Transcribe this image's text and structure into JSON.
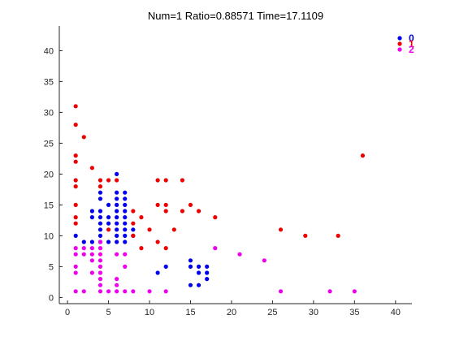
{
  "chart_data": {
    "type": "scatter",
    "title": "Num=1 Ratio=0.88571 Time=17.1109",
    "xlabel": "",
    "ylabel": "",
    "xlim": [
      -1,
      42
    ],
    "ylim": [
      -1,
      44
    ],
    "xticks": [
      "0",
      "5",
      "10",
      "15",
      "20",
      "25",
      "30",
      "35",
      "40"
    ],
    "yticks": [
      "0",
      "5",
      "10",
      "15",
      "20",
      "25",
      "30",
      "35",
      "40"
    ],
    "grid": false,
    "legend_position": "top-right",
    "series": [
      {
        "name": "0",
        "color": "#0000ee",
        "points": [
          [
            6,
            20
          ],
          [
            4,
            17
          ],
          [
            6,
            17
          ],
          [
            7,
            17
          ],
          [
            4,
            16
          ],
          [
            6,
            16
          ],
          [
            7,
            16
          ],
          [
            5,
            15
          ],
          [
            6,
            15
          ],
          [
            7,
            15
          ],
          [
            3,
            14
          ],
          [
            4,
            14
          ],
          [
            6,
            14
          ],
          [
            7,
            14
          ],
          [
            3,
            13
          ],
          [
            4,
            13
          ],
          [
            5,
            13
          ],
          [
            6,
            13
          ],
          [
            7,
            13
          ],
          [
            4,
            12
          ],
          [
            5,
            12
          ],
          [
            6,
            12
          ],
          [
            7,
            12
          ],
          [
            4,
            11
          ],
          [
            6,
            11
          ],
          [
            7,
            11
          ],
          [
            8,
            11
          ],
          [
            1,
            10
          ],
          [
            4,
            10
          ],
          [
            6,
            10
          ],
          [
            7,
            10
          ],
          [
            8,
            10
          ],
          [
            2,
            9
          ],
          [
            3,
            9
          ],
          [
            4,
            9
          ],
          [
            5,
            9
          ],
          [
            6,
            9
          ],
          [
            7,
            9
          ],
          [
            15,
            6
          ],
          [
            12,
            5
          ],
          [
            15,
            5
          ],
          [
            16,
            5
          ],
          [
            17,
            5
          ],
          [
            11,
            4
          ],
          [
            16,
            4
          ],
          [
            17,
            4
          ],
          [
            17,
            3
          ],
          [
            15,
            2
          ],
          [
            16,
            2
          ]
        ]
      },
      {
        "name": "1",
        "color": "#ee0000",
        "points": [
          [
            1,
            31
          ],
          [
            1,
            28
          ],
          [
            2,
            26
          ],
          [
            1,
            23
          ],
          [
            1,
            22
          ],
          [
            3,
            21
          ],
          [
            1,
            19
          ],
          [
            4,
            19
          ],
          [
            5,
            19
          ],
          [
            6,
            19
          ],
          [
            11,
            19
          ],
          [
            12,
            19
          ],
          [
            14,
            19
          ],
          [
            1,
            18
          ],
          [
            4,
            18
          ],
          [
            11,
            15
          ],
          [
            12,
            15
          ],
          [
            15,
            15
          ],
          [
            1,
            15
          ],
          [
            16,
            14
          ],
          [
            8,
            14
          ],
          [
            12,
            14
          ],
          [
            14,
            14
          ],
          [
            1,
            13
          ],
          [
            9,
            13
          ],
          [
            18,
            13
          ],
          [
            8,
            12
          ],
          [
            1,
            12
          ],
          [
            5,
            11
          ],
          [
            13,
            11
          ],
          [
            10,
            11
          ],
          [
            26,
            11
          ],
          [
            33,
            10
          ],
          [
            29,
            10
          ],
          [
            8,
            10
          ],
          [
            11,
            9
          ],
          [
            12,
            8
          ],
          [
            9,
            8
          ],
          [
            36,
            23
          ]
        ]
      },
      {
        "name": "2",
        "color": "#ee00ee",
        "points": [
          [
            1,
            8
          ],
          [
            2,
            8
          ],
          [
            3,
            8
          ],
          [
            4,
            9
          ],
          [
            1,
            7
          ],
          [
            2,
            7
          ],
          [
            3,
            7
          ],
          [
            4,
            7
          ],
          [
            6,
            7
          ],
          [
            7,
            7
          ],
          [
            1,
            5
          ],
          [
            4,
            5
          ],
          [
            1,
            4
          ],
          [
            3,
            4
          ],
          [
            4,
            4
          ],
          [
            7,
            5
          ],
          [
            4,
            3
          ],
          [
            4,
            2
          ],
          [
            6,
            3
          ],
          [
            6,
            2
          ],
          [
            5,
            1
          ],
          [
            1,
            1
          ],
          [
            2,
            1
          ],
          [
            4,
            1
          ],
          [
            6,
            1
          ],
          [
            7,
            1
          ],
          [
            8,
            1
          ],
          [
            10,
            1
          ],
          [
            12,
            1
          ],
          [
            18,
            8
          ],
          [
            21,
            7
          ],
          [
            24,
            6
          ],
          [
            26,
            1
          ],
          [
            32,
            1
          ],
          [
            35,
            1
          ],
          [
            3,
            6
          ],
          [
            4,
            6
          ],
          [
            4,
            8
          ]
        ]
      }
    ]
  }
}
